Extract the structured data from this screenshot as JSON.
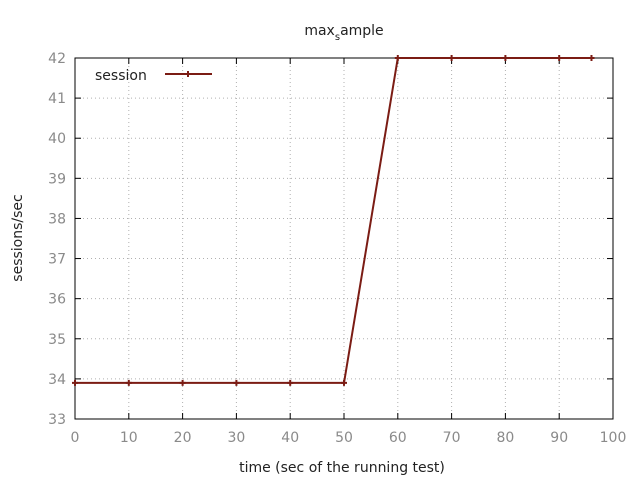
{
  "chart_data": {
    "type": "line",
    "title_main": "max",
    "title_sub": "s",
    "title_rest": "ample",
    "xlabel": "time (sec of the running test)",
    "ylabel": "sessions/sec",
    "xlim": [
      0,
      100
    ],
    "ylim": [
      33,
      42
    ],
    "xticks": [
      0,
      10,
      20,
      30,
      40,
      50,
      60,
      70,
      80,
      90,
      100
    ],
    "yticks": [
      33,
      34,
      35,
      36,
      37,
      38,
      39,
      40,
      41,
      42
    ],
    "grid": true,
    "legend_position": "top-left",
    "series": [
      {
        "name": "session",
        "color": "#7b1c14",
        "x": [
          0,
          10,
          20,
          30,
          40,
          50,
          60,
          70,
          80,
          90,
          96
        ],
        "y": [
          33.9,
          33.9,
          33.9,
          33.9,
          33.9,
          33.9,
          42,
          42,
          42,
          42,
          42
        ]
      }
    ]
  }
}
